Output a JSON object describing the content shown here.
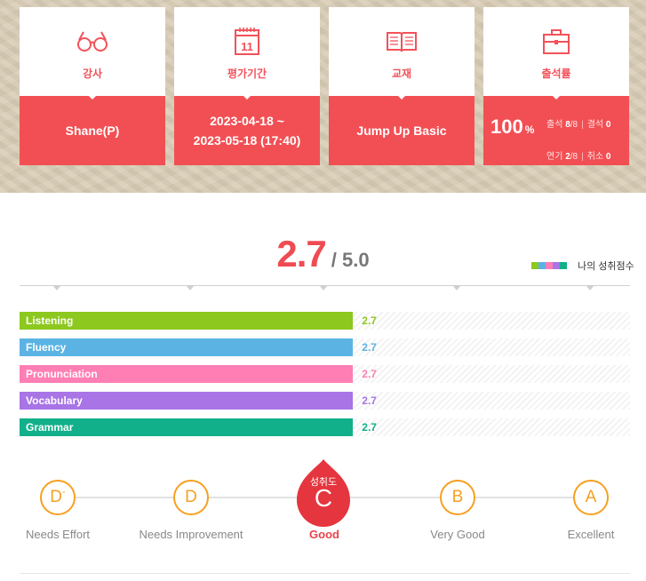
{
  "cards": [
    {
      "title": "강사",
      "icon": "glasses-icon",
      "value": "Shane(P)"
    },
    {
      "title": "평가기간",
      "icon": "calendar-icon",
      "icon_text": "11",
      "value_line1": "2023-04-18 ~",
      "value_line2": "2023-05-18 (17:40)"
    },
    {
      "title": "교재",
      "icon": "book-icon",
      "value": "Jump Up Basic"
    },
    {
      "title": "출석률",
      "icon": "briefcase-icon",
      "percent": "100",
      "percent_unit": "%",
      "attend_label": "출석",
      "attend_value": "8",
      "attend_total": "/8",
      "absent_label": "결석",
      "absent_value": "0",
      "postpone_label": "연기",
      "postpone_value": "2",
      "postpone_total": "/8",
      "cancel_label": "취소",
      "cancel_value": "0"
    }
  ],
  "score": {
    "value": "2.7",
    "max": "/ 5.0"
  },
  "legend": {
    "label": "나의 성취점수",
    "colors": [
      "#8cc81e",
      "#5bb3e4",
      "#ff7eb3",
      "#a874e6",
      "#11b08a"
    ]
  },
  "chart_data": {
    "type": "bar",
    "categories": [
      "Listening",
      "Fluency",
      "Pronunciation",
      "Vocabulary",
      "Grammar"
    ],
    "values": [
      2.7,
      2.7,
      2.7,
      2.7,
      2.7
    ],
    "value_labels": [
      "2.7",
      "2.7",
      "2.7",
      "2.7",
      "2.7"
    ],
    "colors": [
      "#8cc81e",
      "#5bb3e4",
      "#ff7eb3",
      "#a874e6",
      "#11b08a"
    ],
    "xlim": [
      0,
      5
    ]
  },
  "grades": [
    {
      "letter": "D",
      "sup": "-",
      "name": "Needs Effort"
    },
    {
      "letter": "D",
      "name": "Needs Improvement"
    },
    {
      "letter": "C",
      "name": "Good",
      "active": true,
      "active_label": "성취도"
    },
    {
      "letter": "B",
      "name": "Very Good"
    },
    {
      "letter": "A",
      "name": "Excellent"
    }
  ]
}
